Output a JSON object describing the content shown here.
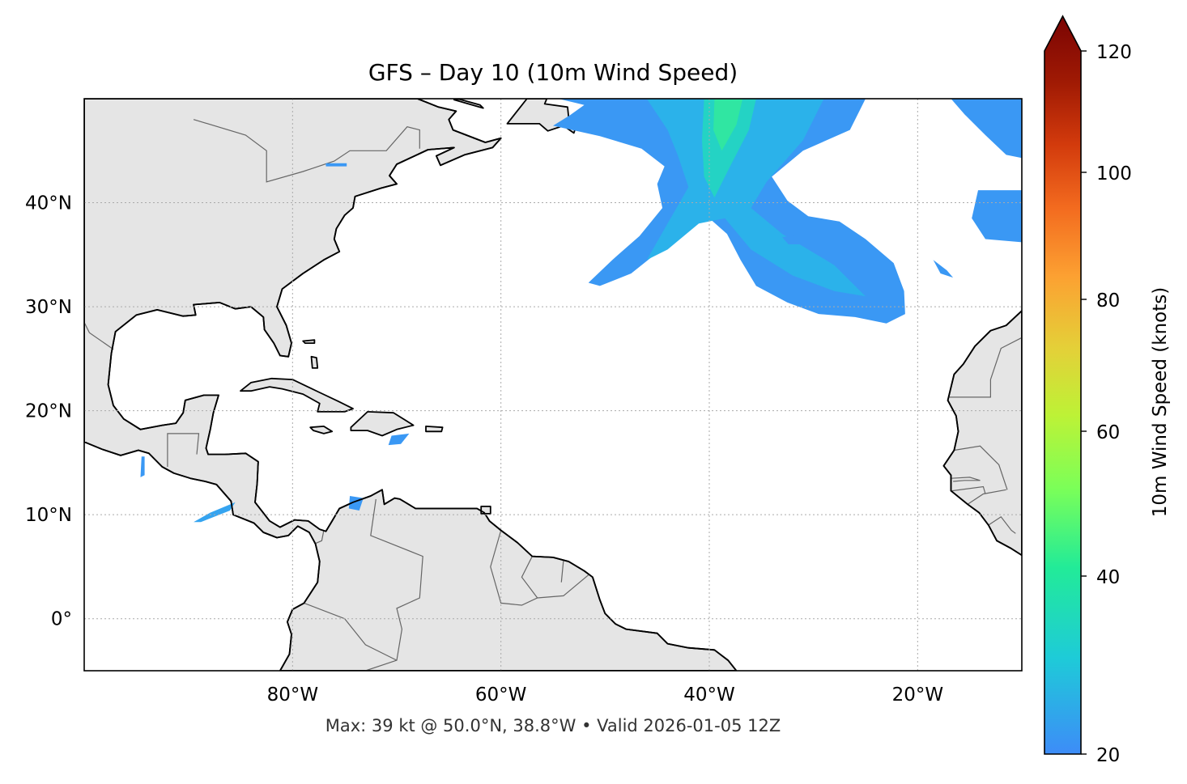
{
  "title": "GFS – Day 10 (10m Wind Speed)",
  "footer": "Max: 39 kt @ 50.0°N, 38.8°W • Valid 2026-01-05 12Z",
  "map": {
    "projection": "plate-carree",
    "extent": {
      "lon": [
        -100,
        -10
      ],
      "lat": [
        -5,
        50
      ]
    },
    "gridlines": "dotted",
    "lon_ticks": [
      {
        "value": -80,
        "label": "80°W"
      },
      {
        "value": -60,
        "label": "60°W"
      },
      {
        "value": -40,
        "label": "40°W"
      },
      {
        "value": -20,
        "label": "20°W"
      }
    ],
    "lat_ticks": [
      {
        "value": 40,
        "label": "40°N"
      },
      {
        "value": 30,
        "label": "30°N"
      },
      {
        "value": 20,
        "label": "20°N"
      },
      {
        "value": 10,
        "label": "10°N"
      },
      {
        "value": 0,
        "label": "0°"
      }
    ],
    "colors": {
      "land": "#e5e5e5",
      "ocean": "#ffffff",
      "coastline": "#000000",
      "borders": "#666666"
    }
  },
  "colorbar": {
    "label": "10m Wind Speed (knots)",
    "ticks": [
      {
        "value": 120,
        "label": "120"
      },
      {
        "value": 100,
        "label": "100"
      },
      {
        "value": 80,
        "label": "80"
      },
      {
        "value": 60,
        "label": "60"
      },
      {
        "value": 40,
        "label": "40"
      },
      {
        "value": 20,
        "label": "20"
      }
    ],
    "range": [
      20,
      120
    ],
    "extend": "max",
    "colormap": "turbo"
  }
}
